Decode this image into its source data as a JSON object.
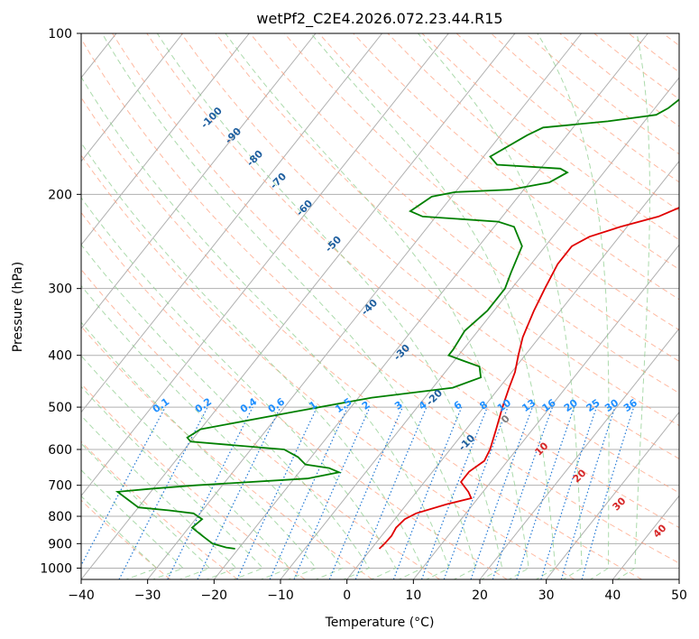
{
  "chart_data": {
    "type": "line",
    "title": "wetPf2_C2E4.2026.072.23.44.R15",
    "xlabel": "Temperature (°C)",
    "ylabel": "Pressure (hPa)",
    "xlim": [
      -40,
      50
    ],
    "ylim": [
      1050,
      100
    ],
    "y_scale": "log",
    "skew": "skew-T log-p",
    "grid": true,
    "x_ticks": [
      -40,
      -30,
      -20,
      -10,
      0,
      10,
      20,
      30,
      40,
      50
    ],
    "y_ticks": [
      100,
      200,
      300,
      400,
      500,
      600,
      700,
      800,
      900,
      1000
    ],
    "series": [
      {
        "color": "#e00000",
        "points": [
          [
            23.0,
            100
          ],
          [
            21.8,
            105
          ],
          [
            20.3,
            112
          ],
          [
            19.5,
            120
          ],
          [
            19.7,
            135
          ],
          [
            19.8,
            150
          ],
          [
            18.5,
            160
          ],
          [
            14.5,
            170
          ],
          [
            8.5,
            180
          ],
          [
            6.5,
            190
          ],
          [
            6.5,
            200
          ],
          [
            6.0,
            210
          ],
          [
            3.5,
            220
          ],
          [
            -1.0,
            230
          ],
          [
            -4.5,
            240
          ],
          [
            -6.0,
            250
          ],
          [
            -6.0,
            270
          ],
          [
            -5.0,
            300
          ],
          [
            -4.0,
            330
          ],
          [
            -2.5,
            370
          ],
          [
            -1.0,
            400
          ],
          [
            0.5,
            430
          ],
          [
            1.5,
            460
          ],
          [
            2.8,
            500
          ],
          [
            4.5,
            550
          ],
          [
            6.0,
            600
          ],
          [
            6.5,
            630
          ],
          [
            5.5,
            660
          ],
          [
            5.5,
            690
          ],
          [
            7.8,
            720
          ],
          [
            9.0,
            740
          ],
          [
            6.0,
            760
          ],
          [
            2.5,
            790
          ],
          [
            1.5,
            810
          ],
          [
            1.2,
            840
          ],
          [
            1.5,
            870
          ],
          [
            1.4,
            900
          ],
          [
            1.2,
            920
          ]
        ]
      },
      {
        "color": "#008000",
        "points": [
          [
            -0.5,
            100
          ],
          [
            -3.5,
            110
          ],
          [
            -5.5,
            120
          ],
          [
            -7.0,
            130
          ],
          [
            -8.0,
            138
          ],
          [
            -9.0,
            142
          ],
          [
            -15.5,
            146
          ],
          [
            -24.5,
            150
          ],
          [
            -26.0,
            155
          ],
          [
            -29.0,
            170
          ],
          [
            -27.0,
            176
          ],
          [
            -17.0,
            179
          ],
          [
            -15.5,
            182
          ],
          [
            -17.0,
            190
          ],
          [
            -22.0,
            196
          ],
          [
            -30.0,
            198
          ],
          [
            -33.0,
            202
          ],
          [
            -34.5,
            215
          ],
          [
            -32.0,
            220
          ],
          [
            -20.0,
            225
          ],
          [
            -17.0,
            230
          ],
          [
            -13.5,
            250
          ],
          [
            -12.0,
            280
          ],
          [
            -11.0,
            300
          ],
          [
            -11.0,
            330
          ],
          [
            -12.0,
            360
          ],
          [
            -11.5,
            390
          ],
          [
            -11.5,
            400
          ],
          [
            -8.5,
            410
          ],
          [
            -5.5,
            420
          ],
          [
            -4.0,
            440
          ],
          [
            -7.0,
            460
          ],
          [
            -18.0,
            480
          ],
          [
            -28.0,
            510
          ],
          [
            -40.0,
            550
          ],
          [
            -41.0,
            570
          ],
          [
            -40.0,
            580
          ],
          [
            -25.0,
            600
          ],
          [
            -22.0,
            620
          ],
          [
            -20.0,
            640
          ],
          [
            -16.0,
            650
          ],
          [
            -14.0,
            662
          ],
          [
            -18.0,
            680
          ],
          [
            -34.0,
            700
          ],
          [
            -40.0,
            710
          ],
          [
            -45.0,
            720
          ],
          [
            -40.0,
            770
          ],
          [
            -35.0,
            780
          ],
          [
            -31.0,
            790
          ],
          [
            -30.0,
            800
          ],
          [
            -29.0,
            810
          ],
          [
            -29.5,
            840
          ],
          [
            -27.0,
            870
          ],
          [
            -24.5,
            900
          ],
          [
            -22.0,
            915
          ],
          [
            -20.5,
            920
          ]
        ]
      }
    ],
    "mixing_ratio_labels": [
      "0.1",
      "0.2",
      "0.4",
      "0.6",
      "1",
      "1.5",
      "2",
      "3",
      "4",
      "6",
      "8",
      "10",
      "13",
      "16",
      "20",
      "25",
      "30",
      "36"
    ],
    "mixing_ratio_values": [
      0.1,
      0.2,
      0.4,
      0.6,
      1,
      1.5,
      2,
      3,
      4,
      6,
      8,
      10,
      13,
      16,
      20,
      25,
      30,
      36
    ],
    "dry_adiabat_labels": [
      "-100",
      "-90",
      "-80",
      "-70",
      "-60",
      "-50",
      "-40",
      "-30",
      "-20",
      "-10"
    ],
    "dry_adiabat_values": [
      -100,
      -90,
      -80,
      -70,
      -60,
      -50,
      -40,
      -30,
      -20,
      -10
    ],
    "moist_adiabat_labels": [
      "0",
      "10",
      "20",
      "30",
      "40"
    ],
    "moist_adiabat_values": [
      0,
      10,
      20,
      30,
      40
    ],
    "colors": {
      "grid": "#b0b0b0",
      "dry_adiabat": "#ff9c7a",
      "moist_adiabat": "#8fce8f",
      "mixing_ratio": "#1f77d4",
      "dry_label": "#1f5f9f",
      "mixing_label": "#1f8fff",
      "moist_label_zero": "#7f7f7f",
      "moist_label": "#d62728",
      "dendritic": "#d2b48c"
    }
  }
}
